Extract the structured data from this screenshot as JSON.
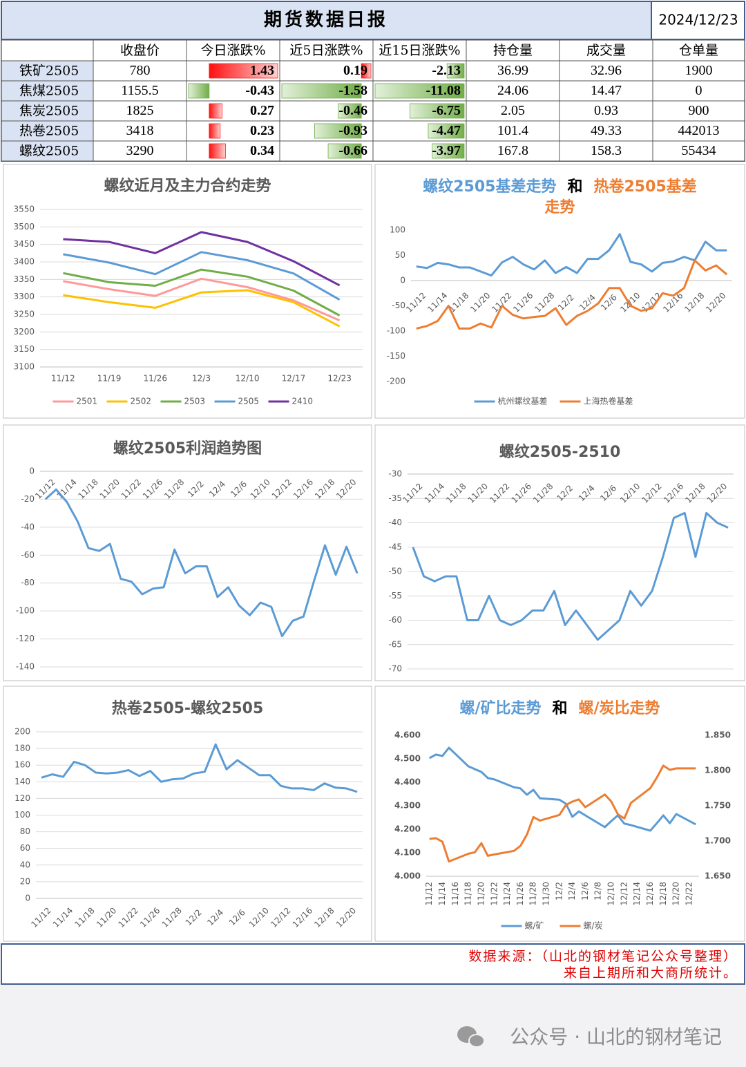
{
  "header": {
    "title": "期货数据日报",
    "date": "2024/12/23"
  },
  "table": {
    "columns": [
      "收盘价",
      "今日涨跌%",
      "近5日涨跌%",
      "近15日涨跌%",
      "持仓量",
      "成交量",
      "仓单量"
    ],
    "positive_color": "#ff2020",
    "negative_color": "#70ad47",
    "rows": [
      {
        "name": "铁矿2505",
        "cells": [
          780,
          1.43,
          0.19,
          -2.13,
          36.99,
          32.96,
          1900
        ]
      },
      {
        "name": "焦煤2505",
        "cells": [
          1155.5,
          -0.43,
          -1.58,
          -11.08,
          24.06,
          14.47,
          0
        ]
      },
      {
        "name": "焦炭2505",
        "cells": [
          1825,
          0.27,
          -0.46,
          -6.75,
          2.05,
          0.93,
          900
        ]
      },
      {
        "name": "热卷2505",
        "cells": [
          3418,
          0.23,
          -0.93,
          -4.47,
          101.4,
          49.33,
          442013
        ]
      },
      {
        "name": "螺纹2505",
        "cells": [
          3290,
          0.34,
          -0.66,
          -3.97,
          167.8,
          158.3,
          55434
        ]
      }
    ]
  },
  "chart_data": [
    {
      "type": "line",
      "title": "螺纹近月及主力合约走势",
      "categories": [
        "11/12",
        "11/19",
        "11/26",
        "12/3",
        "12/10",
        "12/17",
        "12/23"
      ],
      "series": [
        {
          "name": "2501",
          "color": "#ff9999",
          "values": [
            3345,
            3322,
            3303,
            3352,
            3328,
            3290,
            3233
          ]
        },
        {
          "name": "2502",
          "color": "#ffc000",
          "values": [
            3305,
            3285,
            3269,
            3313,
            3319,
            3285,
            3216
          ]
        },
        {
          "name": "2503",
          "color": "#70ad47",
          "values": [
            3368,
            3342,
            3332,
            3378,
            3358,
            3318,
            3247
          ]
        },
        {
          "name": "2505",
          "color": "#5b9bd5",
          "values": [
            3422,
            3398,
            3365,
            3428,
            3405,
            3367,
            3292
          ]
        },
        {
          "name": "2410",
          "color": "#7030a0",
          "values": [
            3465,
            3457,
            3425,
            3485,
            3457,
            3402,
            3333
          ]
        }
      ],
      "ylim": [
        3100,
        3550
      ],
      "yticks": [
        3100,
        3150,
        3200,
        3250,
        3300,
        3350,
        3400,
        3450,
        3500,
        3550
      ],
      "grid": true,
      "legend": "bottom"
    },
    {
      "type": "line",
      "title_parts": [
        {
          "text": "螺纹2505基差走势",
          "color": "#5b9bd5"
        },
        {
          "text": "和",
          "color": "#000000"
        },
        {
          "text": "热卷2505基差",
          "color": "#ed7d31"
        },
        {
          "text": "走势",
          "color": "#ed7d31"
        }
      ],
      "categories": [
        "11/12",
        null,
        "11/14",
        null,
        "11/18",
        null,
        "11/20",
        null,
        "11/22",
        null,
        "11/26",
        null,
        "11/28",
        null,
        "12/2",
        null,
        "12/4",
        null,
        "12/6",
        null,
        "12/10",
        null,
        "12/12",
        null,
        "12/16",
        null,
        "12/18",
        null,
        "12/20",
        null
      ],
      "series": [
        {
          "name": "杭州螺纹基差",
          "color": "#5b9bd5",
          "values": [
            28,
            25,
            35,
            32,
            26,
            26,
            18,
            10,
            36,
            47,
            32,
            22,
            40,
            15,
            27,
            15,
            43,
            43,
            60,
            92,
            37,
            32,
            18,
            35,
            38,
            47,
            40,
            77,
            60,
            60
          ]
        },
        {
          "name": "上海热卷基差",
          "color": "#ed7d31",
          "values": [
            -95,
            -90,
            -80,
            -50,
            -95,
            -95,
            -85,
            -93,
            -50,
            -68,
            -75,
            -72,
            -70,
            -55,
            -88,
            -70,
            -60,
            -45,
            -15,
            -15,
            -50,
            -60,
            -55,
            -25,
            -30,
            -15,
            40,
            20,
            30,
            12
          ]
        }
      ],
      "ylim": [
        -200,
        100
      ],
      "yticks": [
        -200,
        -150,
        -100,
        -50,
        0,
        50,
        100
      ],
      "grid": false,
      "legend": "bottom"
    },
    {
      "type": "line",
      "title": "螺纹2505利润趋势图",
      "categories": [
        "11/12",
        null,
        "11/14",
        null,
        "11/18",
        null,
        "11/20",
        null,
        "11/22",
        null,
        "11/26",
        null,
        "11/28",
        null,
        "12/2",
        null,
        "12/4",
        null,
        "12/6",
        null,
        "12/10",
        null,
        "12/12",
        null,
        "12/16",
        null,
        "12/18",
        null,
        "12/20",
        null
      ],
      "values": [
        -20,
        -13,
        -22,
        -36,
        -55,
        -57,
        -52,
        -77,
        -79,
        -88,
        -84,
        -83,
        -56,
        -73,
        -68,
        -68,
        -90,
        -83,
        -96,
        -103,
        -94,
        -97,
        -118,
        -107,
        -104,
        -78,
        -53,
        -74,
        -54,
        -73
      ],
      "color": "#5b9bd5",
      "ylim": [
        -140,
        0
      ],
      "yticks": [
        -140,
        -120,
        -100,
        -80,
        -60,
        -40,
        -20,
        0
      ],
      "grid": true
    },
    {
      "type": "line",
      "title": "螺纹2505-2510",
      "categories": [
        "11/12",
        null,
        "11/14",
        null,
        "11/18",
        null,
        "11/20",
        null,
        "11/22",
        null,
        "11/26",
        null,
        "11/28",
        null,
        "12/2",
        null,
        "12/4",
        null,
        "12/6",
        null,
        "12/10",
        null,
        "12/12",
        null,
        "12/16",
        null,
        "12/18",
        null,
        "12/20",
        null
      ],
      "values": [
        -45,
        -51,
        -52,
        -51,
        -51,
        -60,
        -60,
        -55,
        -60,
        -61,
        -60,
        -58,
        -58,
        -54,
        -61,
        -58,
        -61,
        -64,
        -62,
        -60,
        -54,
        -57,
        -54,
        -47,
        -39,
        -38,
        -47,
        -38,
        -40,
        -41
      ],
      "color": "#5b9bd5",
      "ylim": [
        -70,
        -30
      ],
      "yticks": [
        -70,
        -65,
        -60,
        -55,
        -50,
        -45,
        -40,
        -35,
        -30
      ],
      "grid": true
    },
    {
      "type": "line",
      "title": "热卷2505-螺纹2505",
      "categories": [
        "11/12",
        null,
        "11/14",
        null,
        "11/18",
        null,
        "11/20",
        null,
        "11/22",
        null,
        "11/26",
        null,
        "11/28",
        null,
        "12/2",
        null,
        "12/4",
        null,
        "12/6",
        null,
        "12/10",
        null,
        "12/12",
        null,
        "12/16",
        null,
        "12/18",
        null,
        "12/20",
        null
      ],
      "values": [
        145,
        149,
        146,
        164,
        160,
        151,
        150,
        151,
        154,
        147,
        153,
        140,
        143,
        144,
        150,
        152,
        185,
        155,
        166,
        157,
        148,
        148,
        135,
        132,
        132,
        130,
        138,
        133,
        132,
        128
      ],
      "color": "#5b9bd5",
      "ylim": [
        0,
        200
      ],
      "yticks": [
        0,
        20,
        40,
        60,
        80,
        100,
        120,
        140,
        160,
        180,
        200
      ],
      "grid": true
    },
    {
      "type": "line",
      "title_parts": [
        {
          "text": "螺/矿比走势",
          "color": "#5b9bd5"
        },
        {
          "text": "和",
          "color": "#000000"
        },
        {
          "text": "螺/炭比走势",
          "color": "#ed7d31"
        }
      ],
      "x": [
        "11/12",
        "11/13",
        "11/14",
        "11/15",
        "11/18",
        "11/19",
        "11/20",
        "11/21",
        "11/22",
        "11/25",
        "11/26",
        "11/27",
        "11/28",
        "11/29",
        "12/2",
        "12/3",
        "12/4",
        "12/5",
        "12/6",
        "12/9",
        "12/10",
        "12/11",
        "12/12",
        "12/13",
        "12/16",
        "12/17",
        "12/18",
        "12/19",
        "12/20",
        "12/23"
      ],
      "xticks": [
        "11/12",
        "11/14",
        "11/16",
        "11/18",
        "11/20",
        "11/22",
        "11/24",
        "11/26",
        "11/28",
        "11/30",
        "12/2",
        "12/4",
        "12/6",
        "12/8",
        "12/10",
        "12/12",
        "12/14",
        "12/16",
        "12/18",
        "12/20",
        "12/22"
      ],
      "series": [
        {
          "name": "螺/矿",
          "color": "#5b9bd5",
          "values": [
            4.503,
            4.518,
            4.512,
            4.547,
            4.468,
            4.456,
            4.444,
            4.418,
            4.412,
            4.379,
            4.374,
            4.347,
            4.368,
            4.332,
            4.326,
            4.309,
            4.253,
            4.276,
            4.259,
            4.209,
            4.235,
            4.259,
            4.224,
            4.218,
            4.194,
            4.226,
            4.259,
            4.226,
            4.265,
            4.221
          ]
        },
        {
          "name": "螺/炭",
          "color": "#ed7d31",
          "axis": "y2",
          "values": [
            1.703,
            1.704,
            1.699,
            1.671,
            1.682,
            1.684,
            1.697,
            1.679,
            1.681,
            1.686,
            1.693,
            1.709,
            1.734,
            1.729,
            1.737,
            1.751,
            1.756,
            1.759,
            1.748,
            1.766,
            1.756,
            1.738,
            1.732,
            1.754,
            1.775,
            1.79,
            1.807,
            1.801,
            1.803,
            1.803
          ]
        }
      ],
      "ylim": [
        4.0,
        4.6
      ],
      "yticks": [
        {
          "value": 4.0,
          "label": "4.000"
        },
        {
          "value": 4.1,
          "label": "4.100"
        },
        {
          "value": 4.2,
          "label": "4.200"
        },
        {
          "value": 4.3,
          "label": "4.300"
        },
        {
          "value": 4.4,
          "label": "4.400"
        },
        {
          "value": 4.5,
          "label": "4.500"
        },
        {
          "value": 4.6,
          "label": "4.600"
        }
      ],
      "y2lim": [
        1.65,
        1.85
      ],
      "y2ticks": [
        {
          "value": 1.65,
          "label": "1.650"
        },
        {
          "value": 1.7,
          "label": "1.700"
        },
        {
          "value": 1.75,
          "label": "1.750"
        },
        {
          "value": 1.8,
          "label": "1.800"
        },
        {
          "value": 1.85,
          "label": "1.850"
        }
      ],
      "grid": false,
      "legend": "bottom"
    }
  ],
  "footer": {
    "source": "数据来源：（山北的钢材笔记公众号整理）",
    "note": "来自上期所和大商所统计。"
  },
  "watermark": "公众号 · 山北的钢材笔记"
}
